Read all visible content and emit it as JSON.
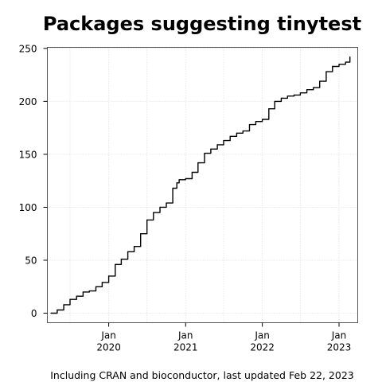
{
  "chart_data": {
    "type": "line",
    "title": "Packages suggesting tinytest",
    "caption": "Including CRAN and bioconductor, last updated Feb 22, 2023",
    "xlabel": "",
    "ylabel": "",
    "grid": true,
    "xlim": [
      "2019-03-15",
      "2023-03-31"
    ],
    "ylim": [
      -9,
      251
    ],
    "y_ticks": [
      0,
      50,
      100,
      150,
      200,
      250
    ],
    "x_ticks": [
      {
        "date": "2020-01-01",
        "month": "Jan",
        "year": "2020"
      },
      {
        "date": "2021-01-01",
        "month": "Jan",
        "year": "2021"
      },
      {
        "date": "2022-01-01",
        "month": "Jan",
        "year": "2022"
      },
      {
        "date": "2023-01-01",
        "month": "Jan",
        "year": "2023"
      }
    ],
    "series": [
      {
        "color": "#000000",
        "x": [
          "2019-04-01",
          "2019-05-01",
          "2019-06-01",
          "2019-07-01",
          "2019-08-01",
          "2019-09-01",
          "2019-10-01",
          "2019-11-01",
          "2019-12-01",
          "2020-01-01",
          "2020-02-01",
          "2020-03-01",
          "2020-04-01",
          "2020-05-01",
          "2020-06-01",
          "2020-07-01",
          "2020-08-01",
          "2020-09-01",
          "2020-10-01",
          "2020-11-01",
          "2020-11-20",
          "2020-12-01",
          "2021-01-01",
          "2021-02-01",
          "2021-03-01",
          "2021-04-01",
          "2021-05-01",
          "2021-06-01",
          "2021-07-01",
          "2021-08-01",
          "2021-09-01",
          "2021-10-01",
          "2021-11-01",
          "2021-12-01",
          "2022-01-01",
          "2022-02-01",
          "2022-03-01",
          "2022-04-01",
          "2022-05-01",
          "2022-06-01",
          "2022-07-01",
          "2022-08-01",
          "2022-09-01",
          "2022-10-01",
          "2022-11-01",
          "2022-12-01",
          "2023-01-01",
          "2023-02-01",
          "2023-02-22"
        ],
        "y": [
          0,
          3,
          8,
          13,
          16,
          20,
          21,
          25,
          29,
          35,
          46,
          51,
          58,
          63,
          75,
          88,
          95,
          100,
          104,
          118,
          123,
          126,
          127,
          133,
          142,
          151,
          155,
          159,
          163,
          167,
          170,
          172,
          178,
          181,
          183,
          193,
          200,
          203,
          205,
          206,
          208,
          211,
          213,
          219,
          228,
          233,
          235,
          237,
          242
        ]
      }
    ]
  }
}
